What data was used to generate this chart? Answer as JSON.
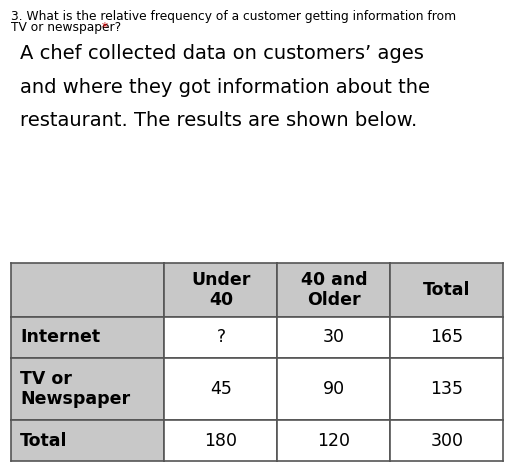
{
  "question_line1": "3. What is the relative frequency of a customer getting information from",
  "question_line2": "TV or newspaper?",
  "asterisk": " *",
  "description_lines": [
    "A chef collected data on customers’ ages",
    "and where they got information about the",
    "restaurant. The results are shown below."
  ],
  "bg_color": "#ffffff",
  "header_bg": "#c8c8c8",
  "row_header_bg": "#c8c8c8",
  "data_bg": "#ffffff",
  "border_color": "#555555",
  "col_headers": [
    "Under\n40",
    "40 and\nOlder",
    "Total"
  ],
  "row_headers": [
    "Internet",
    "TV or\nNewspaper",
    "Total"
  ],
  "data": [
    [
      "?",
      "30",
      "165"
    ],
    [
      "45",
      "90",
      "135"
    ],
    [
      "180",
      "120",
      "300"
    ]
  ],
  "q_fontsize": 8.8,
  "desc_fontsize": 14.0,
  "header_fontsize": 12.5,
  "cell_fontsize": 12.5
}
